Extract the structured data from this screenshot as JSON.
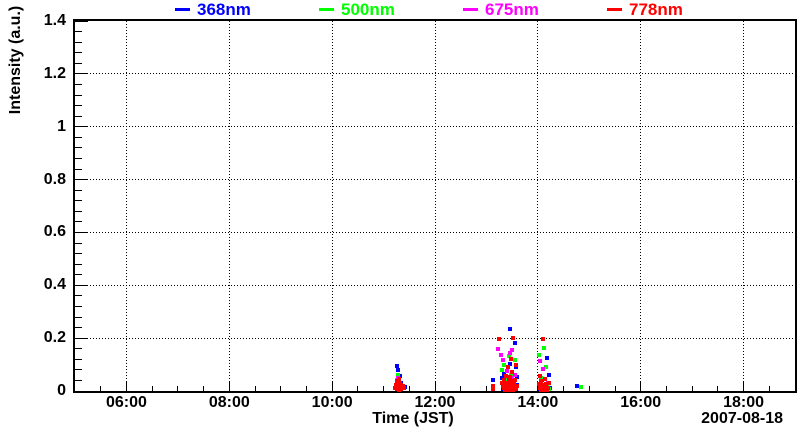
{
  "window": {
    "background": "#ffffff"
  },
  "chart_data": {
    "type": "scatter",
    "title": "",
    "xlabel": "Time (JST)",
    "ylabel": "Intensity (a.u.)",
    "date": "2007-08-18",
    "x_axis_kind": "time of day (JST), decimal hours",
    "xlim": [
      5,
      19
    ],
    "ylim": [
      0,
      1.4
    ],
    "grid": "black dotted lines at major ticks on both axes",
    "legend_position": "horizontal row centered above plot frame",
    "marker": "small filled square",
    "x_ticks": [
      {
        "t": 6,
        "label": "06:00"
      },
      {
        "t": 8,
        "label": "08:00"
      },
      {
        "t": 10,
        "label": "10:00"
      },
      {
        "t": 12,
        "label": "12:00"
      },
      {
        "t": 14,
        "label": "14:00"
      },
      {
        "t": 16,
        "label": "16:00"
      },
      {
        "t": 18,
        "label": "18:00"
      }
    ],
    "x_minor_step_hours": 0.5,
    "y_ticks": [
      {
        "v": 0,
        "label": "0"
      },
      {
        "v": 0.2,
        "label": "0.2"
      },
      {
        "v": 0.4,
        "label": "0.4"
      },
      {
        "v": 0.6,
        "label": "0.6"
      },
      {
        "v": 0.8,
        "label": "0.8"
      },
      {
        "v": 1,
        "label": "1"
      },
      {
        "v": 1.2,
        "label": "1.2"
      },
      {
        "v": 1.4,
        "label": "1.4"
      }
    ],
    "y_minor_step": 0.04,
    "series": [
      {
        "name": "368nm",
        "color": "#0000ff",
        "points": [
          [
            11.27,
            0.094
          ],
          [
            11.29,
            0.078
          ],
          [
            11.31,
            0.058
          ],
          [
            11.33,
            0.03
          ],
          [
            11.35,
            0.016
          ],
          [
            11.42,
            0.014
          ],
          [
            13.13,
            0.042
          ],
          [
            13.46,
            0.235
          ],
          [
            13.55,
            0.182
          ],
          [
            13.45,
            0.102
          ],
          [
            13.35,
            0.066
          ],
          [
            13.3,
            0.048
          ],
          [
            13.57,
            0.09
          ],
          [
            13.6,
            0.052
          ],
          [
            13.38,
            0.032
          ],
          [
            13.48,
            0.02
          ],
          [
            13.52,
            0.012
          ],
          [
            13.33,
            0.006
          ],
          [
            13.59,
            0.024
          ],
          [
            13.44,
            0.05
          ],
          [
            13.4,
            0.014
          ],
          [
            14.17,
            0.125
          ],
          [
            14.21,
            0.06
          ],
          [
            14.08,
            0.04
          ],
          [
            14.13,
            0.022
          ],
          [
            14.23,
            0.012
          ],
          [
            14.05,
            0.006
          ],
          [
            14.77,
            0.02
          ]
        ]
      },
      {
        "name": "500nm",
        "color": "#00ff00",
        "points": [
          [
            11.29,
            0.062
          ],
          [
            11.27,
            0.042
          ],
          [
            11.32,
            0.028
          ],
          [
            11.35,
            0.012
          ],
          [
            11.3,
            0.004
          ],
          [
            13.44,
            0.132
          ],
          [
            13.34,
            0.1
          ],
          [
            13.55,
            0.118
          ],
          [
            13.3,
            0.08
          ],
          [
            13.48,
            0.062
          ],
          [
            13.4,
            0.042
          ],
          [
            13.52,
            0.03
          ],
          [
            13.36,
            0.018
          ],
          [
            13.46,
            0.008
          ],
          [
            13.58,
            0.014
          ],
          [
            13.5,
            0.046
          ],
          [
            14.12,
            0.162
          ],
          [
            14.02,
            0.136
          ],
          [
            14.15,
            0.09
          ],
          [
            14.06,
            0.05
          ],
          [
            14.18,
            0.028
          ],
          [
            14.1,
            0.012
          ],
          [
            14.21,
            0.006
          ],
          [
            14.83,
            0.014
          ]
        ]
      },
      {
        "name": "675nm",
        "color": "#ff00ff",
        "points": [
          [
            11.29,
            0.048
          ],
          [
            11.28,
            0.032
          ],
          [
            11.31,
            0.02
          ],
          [
            11.3,
            0.008
          ],
          [
            13.22,
            0.16
          ],
          [
            13.28,
            0.136
          ],
          [
            13.33,
            0.116
          ],
          [
            13.45,
            0.142
          ],
          [
            13.5,
            0.154
          ],
          [
            13.4,
            0.076
          ],
          [
            13.47,
            0.048
          ],
          [
            13.36,
            0.03
          ],
          [
            13.52,
            0.02
          ],
          [
            13.43,
            0.01
          ],
          [
            13.56,
            0.06
          ],
          [
            14.05,
            0.112
          ],
          [
            14.1,
            0.082
          ],
          [
            14.14,
            0.046
          ],
          [
            14.07,
            0.022
          ],
          [
            14.16,
            0.01
          ],
          [
            14.2,
            0.03
          ]
        ]
      },
      {
        "name": "778nm",
        "color": "#ff0000",
        "points": [
          [
            11.22,
            0.012
          ],
          [
            11.24,
            0.022
          ],
          [
            11.26,
            0.036
          ],
          [
            11.27,
            0.016
          ],
          [
            11.29,
            0.028
          ],
          [
            11.3,
            0.044
          ],
          [
            11.31,
            0.012
          ],
          [
            11.32,
            0.032
          ],
          [
            11.34,
            0.022
          ],
          [
            11.36,
            0.012
          ],
          [
            11.38,
            0.018
          ],
          [
            11.26,
            0.006
          ],
          [
            11.3,
            0.004
          ],
          [
            11.34,
            0.006
          ],
          [
            11.4,
            0.01
          ],
          [
            13.12,
            0.02
          ],
          [
            13.13,
            0.006
          ],
          [
            13.25,
            0.196
          ],
          [
            13.52,
            0.2
          ],
          [
            13.48,
            0.122
          ],
          [
            13.58,
            0.1
          ],
          [
            13.42,
            0.092
          ],
          [
            13.5,
            0.072
          ],
          [
            13.38,
            0.056
          ],
          [
            13.46,
            0.052
          ],
          [
            13.44,
            0.046
          ],
          [
            13.55,
            0.04
          ],
          [
            13.35,
            0.04
          ],
          [
            13.48,
            0.036
          ],
          [
            13.42,
            0.032
          ],
          [
            13.3,
            0.03
          ],
          [
            13.54,
            0.028
          ],
          [
            13.37,
            0.028
          ],
          [
            13.44,
            0.02
          ],
          [
            13.5,
            0.022
          ],
          [
            13.33,
            0.02
          ],
          [
            13.6,
            0.02
          ],
          [
            13.56,
            0.016
          ],
          [
            13.34,
            0.012
          ],
          [
            13.4,
            0.012
          ],
          [
            13.52,
            0.012
          ],
          [
            13.46,
            0.006
          ],
          [
            13.58,
            0.006
          ],
          [
            13.36,
            0.004
          ],
          [
            13.39,
            0.002
          ],
          [
            13.43,
            0.002
          ],
          [
            13.47,
            0.002
          ],
          [
            13.51,
            0.002
          ],
          [
            14.1,
            0.196
          ],
          [
            14.04,
            0.056
          ],
          [
            14.13,
            0.046
          ],
          [
            14.07,
            0.036
          ],
          [
            14.21,
            0.032
          ],
          [
            14.16,
            0.028
          ],
          [
            14.02,
            0.026
          ],
          [
            14.1,
            0.022
          ],
          [
            14.15,
            0.018
          ],
          [
            14.19,
            0.012
          ],
          [
            14.05,
            0.012
          ],
          [
            14.12,
            0.008
          ],
          [
            14.08,
            0.006
          ],
          [
            14.17,
            0.004
          ],
          [
            14.06,
            0.002
          ],
          [
            14.11,
            0.002
          ]
        ]
      }
    ]
  }
}
